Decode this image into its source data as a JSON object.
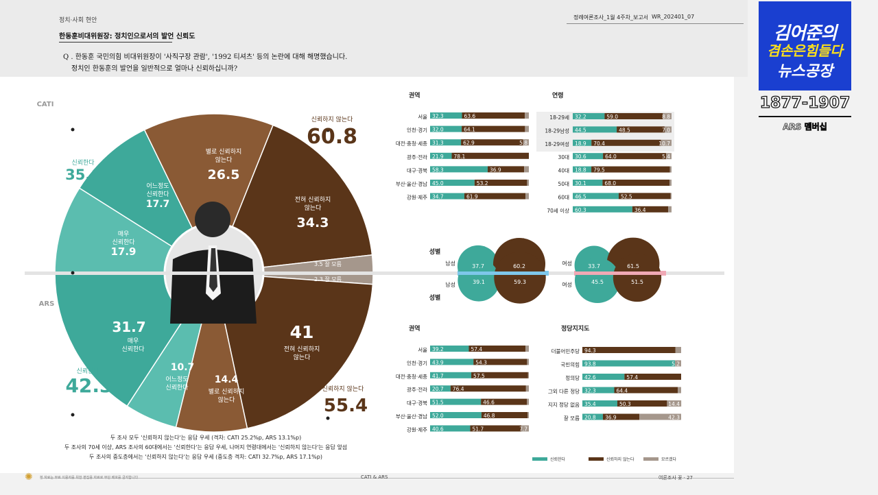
{
  "header": {
    "category": "정치·사회 현안",
    "title": "한동훈비대위원장: 정치인으로서의 발언 신뢰도",
    "question_line1": "Q . 한동훈 국민의힘 비대위원장이 '사직구장 관람', '1992 티셔츠' 등의 논란에 대해 해명했습니다.",
    "question_line2": "정치인 한동훈의 발언을 일반적으로 얼마나 신뢰하십니까?",
    "report_name": "정례여론조사_1월 4주차_보고서",
    "report_code": "WR_202401_07"
  },
  "badge": {
    "line1": "김어준의",
    "line2": "겸손은힘들다",
    "line3": "뉴스공장",
    "range": "1877-1907",
    "membership": "ARS 멤버십"
  },
  "colors": {
    "teal": "#3ea99a",
    "teal_light": "#5bbdaf",
    "brown": "#5a3519",
    "brown_light": "#8a5a35",
    "gray": "#a5978c"
  },
  "chart_data": [
    {
      "type": "pie",
      "title": "CATI",
      "series": [
        {
          "name": "매우 신뢰한다",
          "value": 17.9
        },
        {
          "name": "어느정도 신뢰한다",
          "value": 17.7
        },
        {
          "name": "별로 신뢰하지 않는다",
          "value": 26.5
        },
        {
          "name": "전혀 신뢰하지 않는다",
          "value": 34.3
        },
        {
          "name": "잘 모름",
          "value": 3.5
        }
      ],
      "totals": {
        "신뢰한다": 35.6,
        "신뢰하지 않는다": 60.8
      }
    },
    {
      "type": "pie",
      "title": "ARS",
      "series": [
        {
          "name": "잘 모름",
          "value": 2.3
        },
        {
          "name": "전혀 신뢰하지 않는다",
          "value": 41.0
        },
        {
          "name": "별로 신뢰하지 않는다",
          "value": 14.4
        },
        {
          "name": "어느정도 신뢰한다",
          "value": 10.7
        },
        {
          "name": "매우 신뢰한다",
          "value": 31.7
        }
      ],
      "totals": {
        "신뢰한다": 42.3,
        "신뢰하지 않는다": 55.4
      }
    },
    {
      "type": "bar",
      "title": "권역",
      "categories": [
        "서울",
        "인천·경기",
        "대전·충청·세종",
        "광주·전라",
        "대구·경북",
        "부산·울산·경남",
        "강원·제주"
      ],
      "series": [
        {
          "name": "신뢰한다",
          "values": [
            32.3,
            32.0,
            31.3,
            21.9,
            58.3,
            45.0,
            34.7
          ]
        },
        {
          "name": "신뢰하지 않는다",
          "values": [
            63.6,
            64.1,
            62.9,
            78.1,
            36.9,
            53.2,
            61.9
          ]
        },
        {
          "name": "모르겠다",
          "values": [
            null,
            null,
            5.8,
            null,
            null,
            null,
            null
          ]
        }
      ]
    },
    {
      "type": "bar",
      "title": "연령",
      "categories": [
        "18-29세",
        "18-29남성",
        "18-29여성",
        "30대",
        "40대",
        "50대",
        "60대",
        "70세 이상"
      ],
      "series": [
        {
          "name": "신뢰한다",
          "values": [
            32.2,
            44.5,
            18.9,
            30.6,
            18.8,
            30.1,
            46.5,
            60.3
          ]
        },
        {
          "name": "신뢰하지 않는다",
          "values": [
            59.0,
            48.5,
            70.4,
            64.0,
            79.5,
            68.0,
            52.5,
            36.4
          ]
        },
        {
          "name": "모르겠다",
          "values": [
            8.8,
            7.0,
            10.7,
            5.4,
            null,
            null,
            null,
            null
          ]
        }
      ]
    },
    {
      "type": "bar",
      "title": "성별",
      "categories": [
        "남성(CATI)",
        "여성(CATI)",
        "남성(ARS)",
        "여성(ARS)"
      ],
      "series": [
        {
          "name": "신뢰한다",
          "values": [
            37.7,
            33.7,
            39.1,
            45.5
          ]
        },
        {
          "name": "신뢰하지 않는다",
          "values": [
            60.2,
            61.5,
            59.3,
            51.5
          ]
        }
      ]
    },
    {
      "type": "bar",
      "title": "권역",
      "categories": [
        "서울",
        "인천·경기",
        "대전·충청·세종",
        "광주·전라",
        "대구·경북",
        "부산·울산·경남",
        "강원·제주"
      ],
      "series": [
        {
          "name": "신뢰한다",
          "values": [
            39.2,
            43.9,
            41.7,
            20.7,
            51.5,
            52.0,
            40.6
          ]
        },
        {
          "name": "신뢰하지 않는다",
          "values": [
            57.4,
            54.3,
            57.5,
            76.4,
            46.6,
            46.8,
            51.7
          ]
        },
        {
          "name": "모르겠다",
          "values": [
            null,
            null,
            null,
            null,
            null,
            null,
            7.7
          ]
        }
      ]
    },
    {
      "type": "bar",
      "title": "정당지지도",
      "categories": [
        "더불어민주당",
        "국민의힘",
        "정의당",
        "그외 다른 정당",
        "지지 정당 없음",
        "잘 모름"
      ],
      "series": [
        {
          "name": "신뢰한다",
          "values": [
            null,
            93.8,
            42.6,
            32.3,
            35.4,
            20.8
          ]
        },
        {
          "name": "신뢰하지 않는다",
          "values": [
            94.3,
            null,
            57.4,
            64.4,
            50.3,
            36.9
          ]
        },
        {
          "name": "모르겠다",
          "values": [
            null,
            5.2,
            null,
            null,
            14.4,
            42.3
          ]
        }
      ]
    }
  ],
  "pie_labels": {
    "cati_tag": "CATI",
    "ars_tag": "ARS",
    "trust": "신뢰한다",
    "distrust": "신뢰하지 않는다",
    "cati_trust_total": "35.6",
    "cati_distrust_total": "60.8",
    "ars_trust_total": "42.3",
    "ars_distrust_total": "55.4",
    "somewhat_trust": "어느정도 신뢰한다",
    "very_trust": "매우 신뢰한다",
    "not_much_l1": "별로 신뢰하지",
    "not_much_l2": "않는다",
    "not_at_all_l1": "전혀 신뢰하지",
    "not_at_all_l2": "않는다",
    "dk_cati": "3.5 잘 모름",
    "dk_ars": "2.3 잘 모름",
    "very_trust_l1": "매우",
    "very_trust_l2": "신뢰한다",
    "somewhat_l1": "어느정도",
    "somewhat_l2": "신뢰한다"
  },
  "gender_labels": {
    "title": "성별",
    "male": "남성",
    "female": "여성"
  },
  "notes": [
    "두 조사 모두 '신뢰하지 않는다'는 응답 우세 (격차: CATI 25.2%p, ARS 13.1%p)",
    "두 조사의 70세 이상, ARS 조사의 60대에서는 '신뢰한다'는 응답 우세, 나머지 연령대에서는 '신뢰하지 않는다'는 응답 앞섬",
    "두 조사의 중도층에서는 '신뢰하지 않는다'는 응답 우세 (중도층 격차: CATI 32.7%p, ARS 17.1%p)"
  ],
  "legend": [
    "신뢰한다",
    "신뢰하지 않는다",
    "모르겠다"
  ],
  "footer": {
    "left": "본 자료는 무료 이용자를 위한 편집용 자료로 무단 배포를 금지합니다",
    "center": "CATI & ARS",
    "right": "여론조사 꽃 · 27"
  }
}
